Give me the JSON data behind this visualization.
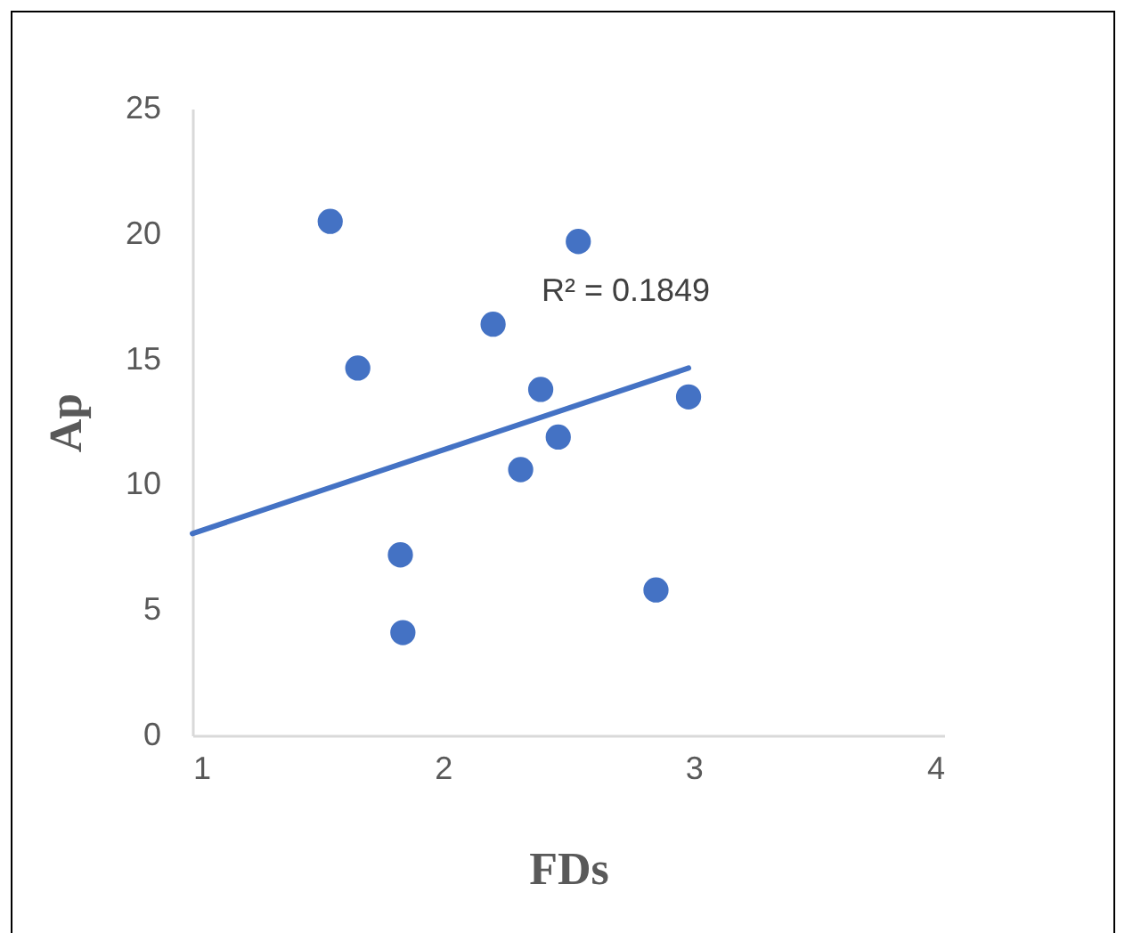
{
  "chart_data": {
    "type": "scatter",
    "xlabel": "FDs",
    "ylabel": "Ap",
    "xlim": [
      1,
      4
    ],
    "xticks": [
      1,
      2,
      3,
      4
    ],
    "ylim": [
      0,
      25
    ],
    "yticks": [
      0,
      5,
      10,
      15,
      20,
      25
    ],
    "grid": false,
    "annotations": [
      "R² = 0.1849"
    ],
    "series": [
      {
        "marker": "circle",
        "color": "#4472c4",
        "x": [
          1.55,
          2.54,
          2.2,
          1.66,
          2.39,
          2.98,
          2.46,
          2.31,
          1.83,
          2.85,
          1.84
        ],
        "values": [
          20.5,
          19.7,
          16.4,
          14.65,
          13.8,
          13.5,
          11.9,
          10.6,
          7.2,
          5.8,
          4.1
        ]
      },
      {
        "type": "line",
        "color": "#4472c4",
        "line_style": "solid",
        "x": [
          1,
          2.98
        ],
        "values": [
          8.05,
          14.65
        ]
      }
    ]
  }
}
